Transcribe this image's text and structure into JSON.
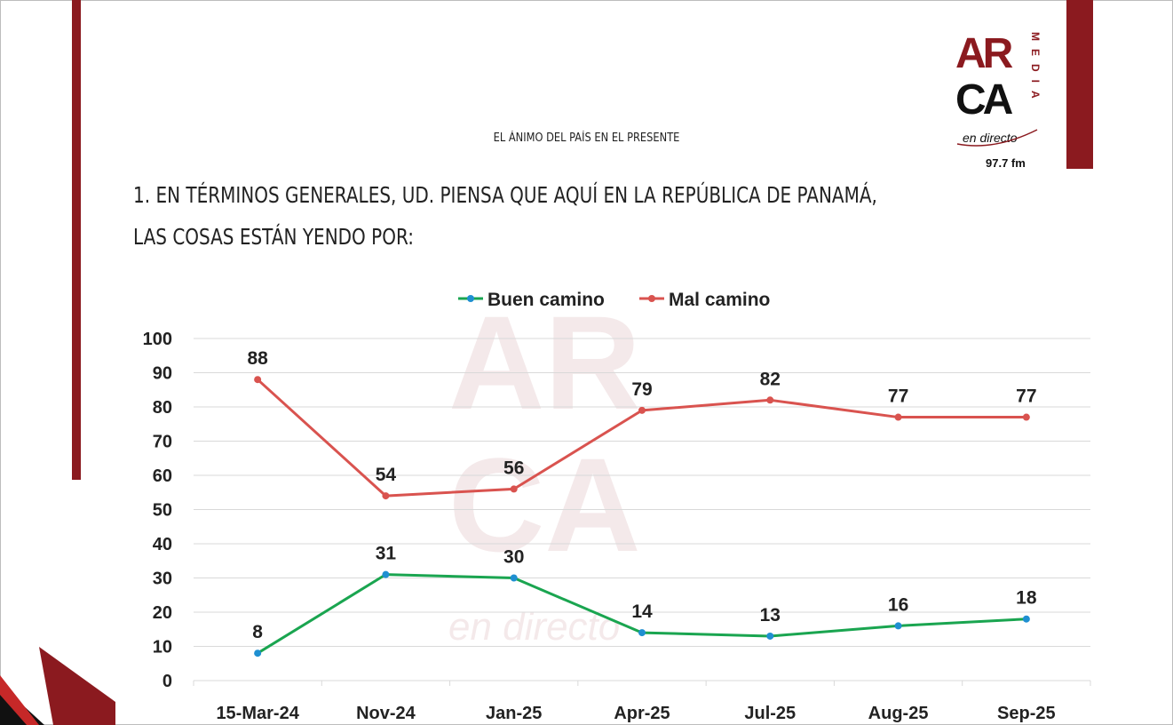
{
  "header": {
    "subtitle": "EL ÁNIMO DEL PAÍS EN EL PRESENTE",
    "question_line1": "1. EN TÉRMINOS GENERALES, UD. PIENSA QUE AQUÍ EN LA REPÚBLICA DE PANAMÁ,",
    "question_line2": "LAS COSAS ESTÁN YENDO POR:"
  },
  "logo": {
    "brand_line1": "AR",
    "brand_line2": "CA",
    "brand_side": "MEDIA",
    "tagline": "en directo",
    "frequency": "97.7 fm"
  },
  "colors": {
    "brand_red": "#8b1a1f",
    "buen": "#1aa550",
    "mal": "#d9534f",
    "point_blue": "#1f8fd1"
  },
  "chart_data": {
    "type": "line",
    "categories": [
      "15-Mar-24",
      "Nov-24",
      "Jan-25",
      "Apr-25",
      "Jul-25",
      "Aug-25",
      "Sep-25"
    ],
    "series": [
      {
        "name": "Buen camino",
        "values": [
          8,
          31,
          30,
          14,
          13,
          16,
          18
        ]
      },
      {
        "name": "Mal camino",
        "values": [
          88,
          54,
          56,
          79,
          82,
          77,
          77
        ]
      }
    ],
    "ylim": [
      0,
      100
    ],
    "yticks": [
      "0",
      "10",
      "20",
      "30",
      "40",
      "50",
      "60",
      "70",
      "80",
      "90",
      "100"
    ],
    "grid": true,
    "legend": "top-center",
    "title": "",
    "xlabel": "",
    "ylabel": ""
  }
}
